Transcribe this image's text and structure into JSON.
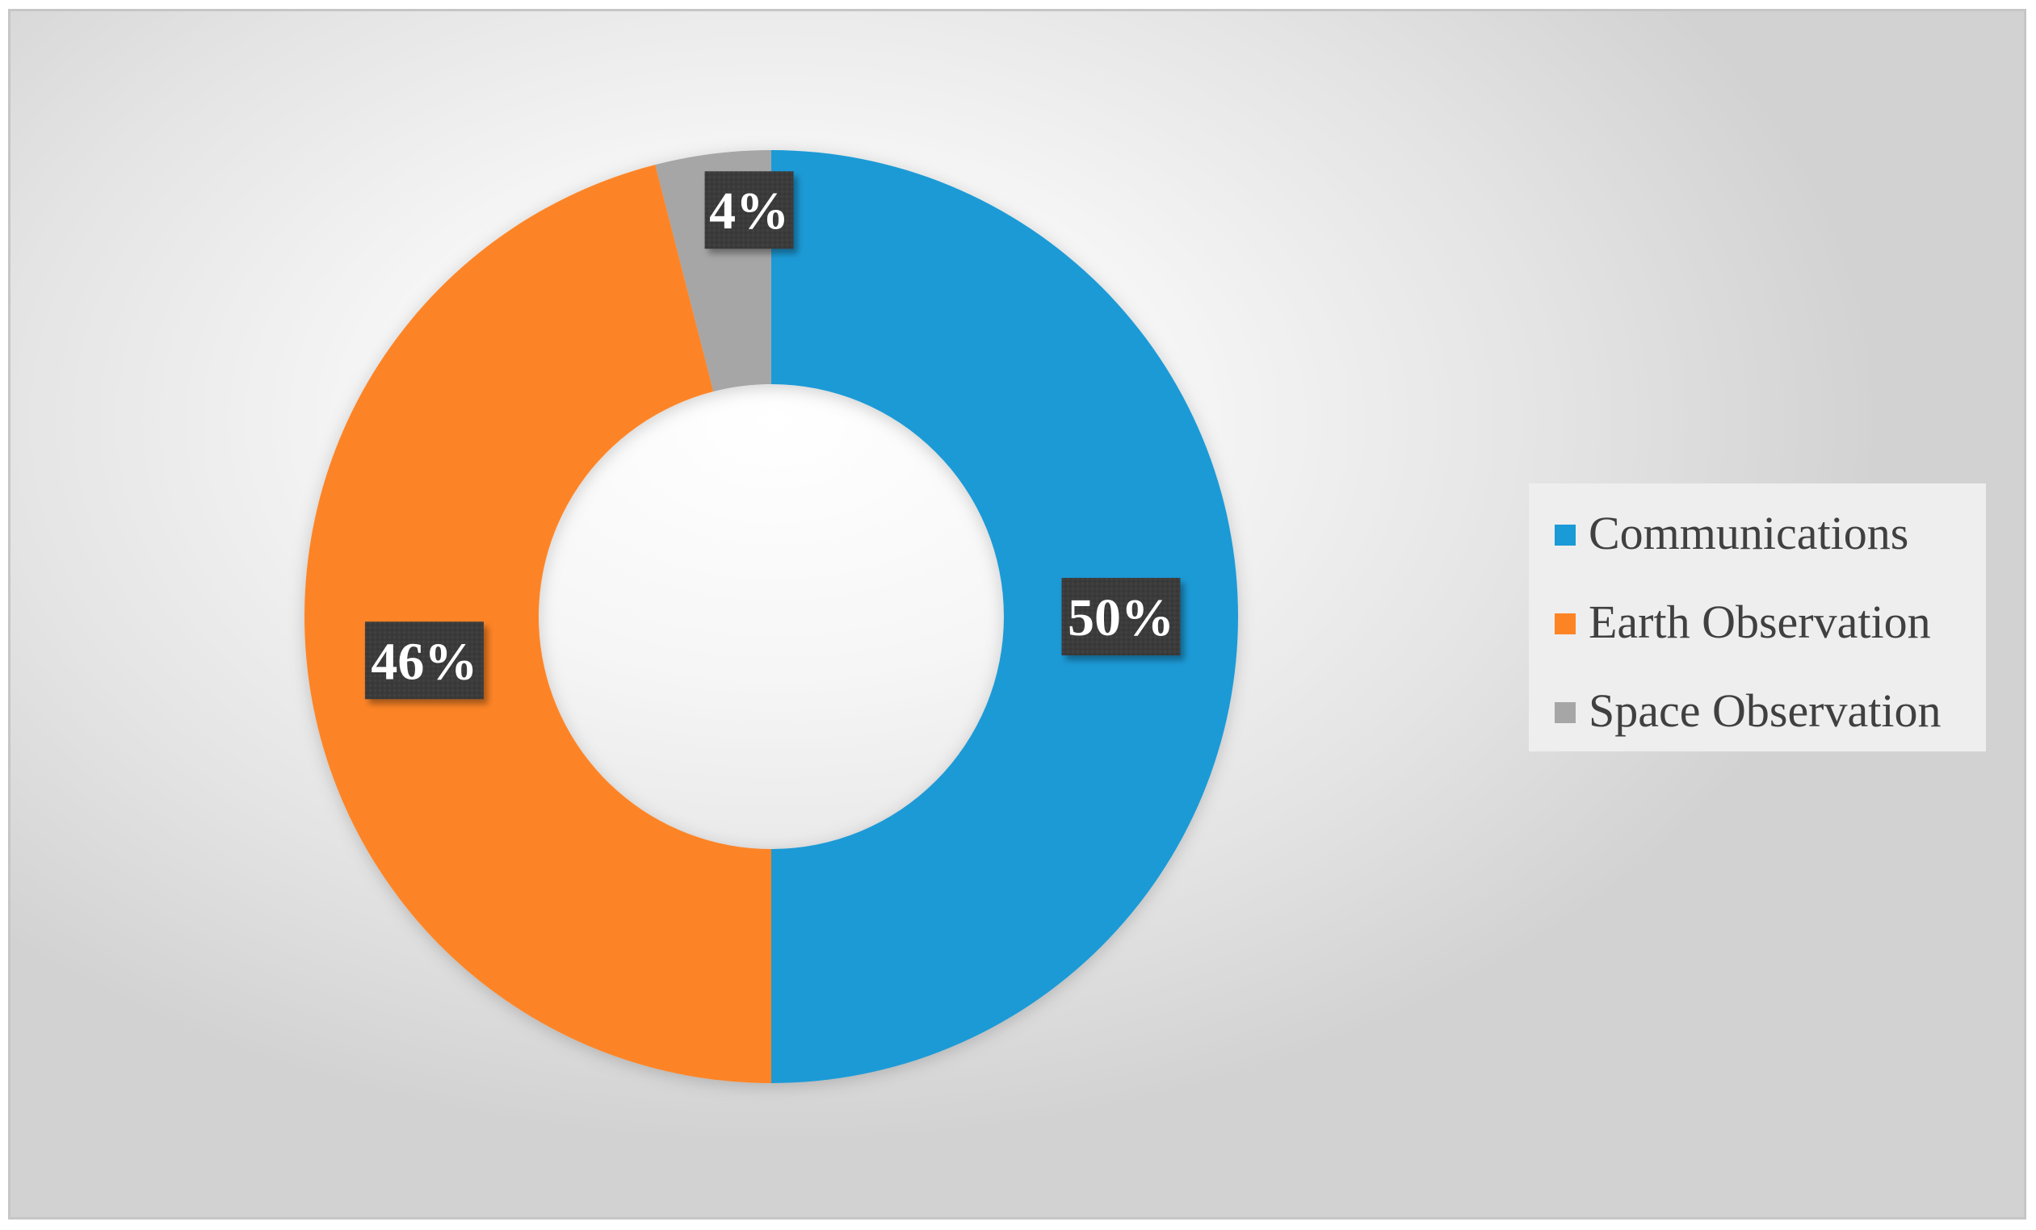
{
  "chart_data": {
    "type": "pie",
    "variant": "donut",
    "categories": [
      "Communications",
      "Earth Observation",
      "Space Observation"
    ],
    "values": [
      50,
      46,
      4
    ],
    "data_labels": [
      "50%",
      "46%",
      "4%"
    ],
    "colors": [
      "#1a9ad6",
      "#fd8425",
      "#a6a6a6"
    ],
    "data_label_background": "#3a3a3a",
    "legend_position": "right",
    "title": ""
  }
}
